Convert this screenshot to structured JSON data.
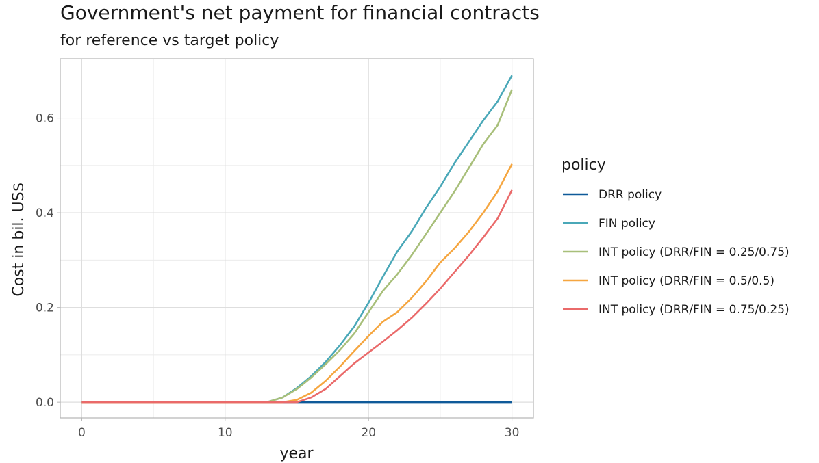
{
  "chart_data": {
    "type": "line",
    "title": "Government's net payment for financial contracts",
    "subtitle": "for reference vs target policy",
    "xlabel": "year",
    "ylabel": "Cost in bil. US$",
    "xlim": [
      -1.5,
      31.5
    ],
    "ylim": [
      -0.033,
      0.725
    ],
    "x_ticks": [
      0,
      10,
      20,
      30
    ],
    "x_tick_labels": [
      "0",
      "10",
      "20",
      "30"
    ],
    "y_ticks": [
      0.0,
      0.2,
      0.4,
      0.6
    ],
    "y_tick_labels": [
      "0.0",
      "0.2",
      "0.4",
      "0.6"
    ],
    "grid": true,
    "legend_title": "policy",
    "legend_position": "right",
    "x": [
      0,
      1,
      2,
      3,
      4,
      5,
      6,
      7,
      8,
      9,
      10,
      11,
      12,
      13,
      14,
      15,
      16,
      17,
      18,
      19,
      20,
      21,
      22,
      23,
      24,
      25,
      26,
      27,
      28,
      29,
      30
    ],
    "series": [
      {
        "name": "DRR policy",
        "color": "#0f5a99",
        "values": [
          0,
          0,
          0,
          0,
          0,
          0,
          0,
          0,
          0,
          0,
          0,
          0,
          0,
          0,
          0,
          0,
          0,
          0,
          0,
          0,
          0,
          0,
          0,
          0,
          0,
          0,
          0,
          0,
          0,
          0,
          0
        ]
      },
      {
        "name": "FIN policy",
        "color": "#4aa8b8",
        "values": [
          0,
          0,
          0,
          0,
          0,
          0,
          0,
          0,
          0,
          0,
          0,
          0,
          0,
          0.001,
          0.01,
          0.03,
          0.055,
          0.085,
          0.12,
          0.16,
          0.21,
          0.265,
          0.318,
          0.36,
          0.41,
          0.455,
          0.505,
          0.55,
          0.595,
          0.635,
          0.69
        ]
      },
      {
        "name": "INT policy (DRR/FIN = 0.25/0.75)",
        "color": "#a8bf7a",
        "values": [
          0,
          0,
          0,
          0,
          0,
          0,
          0,
          0,
          0,
          0,
          0,
          0,
          0,
          0.001,
          0.01,
          0.028,
          0.052,
          0.08,
          0.11,
          0.145,
          0.19,
          0.235,
          0.27,
          0.31,
          0.355,
          0.4,
          0.445,
          0.495,
          0.545,
          0.585,
          0.66
        ]
      },
      {
        "name": "INT policy (DRR/FIN = 0.5/0.5)",
        "color": "#f5a640",
        "values": [
          0,
          0,
          0,
          0,
          0,
          0,
          0,
          0,
          0,
          0,
          0,
          0,
          0,
          0,
          0,
          0.005,
          0.02,
          0.045,
          0.075,
          0.108,
          0.14,
          0.17,
          0.19,
          0.22,
          0.255,
          0.295,
          0.325,
          0.36,
          0.4,
          0.445,
          0.503
        ]
      },
      {
        "name": "INT policy (DRR/FIN = 0.75/0.25)",
        "color": "#ea6a6a",
        "values": [
          0,
          0,
          0,
          0,
          0,
          0,
          0,
          0,
          0,
          0,
          0,
          0,
          0,
          0,
          0,
          0,
          0.01,
          0.028,
          0.055,
          0.082,
          0.105,
          0.128,
          0.152,
          0.178,
          0.208,
          0.24,
          0.275,
          0.31,
          0.348,
          0.388,
          0.448
        ]
      }
    ]
  }
}
